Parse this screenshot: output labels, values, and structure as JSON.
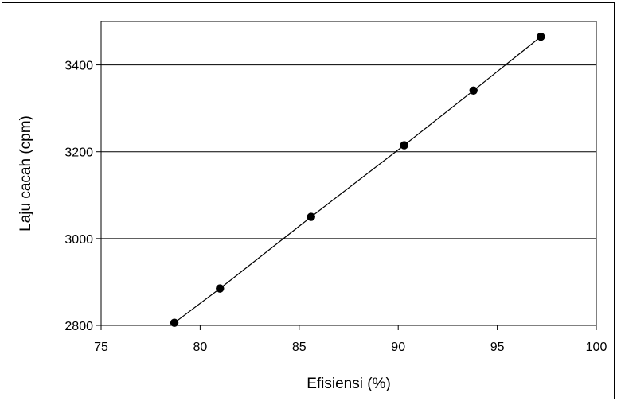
{
  "chart_data": {
    "type": "line",
    "xlabel": "Efisiensi (%)",
    "ylabel": "Laju cacah (cpm)",
    "xlim": [
      75,
      100
    ],
    "ylim": [
      2800,
      3500
    ],
    "xticks": [
      75,
      80,
      85,
      90,
      95,
      100
    ],
    "yticks": [
      2800,
      3000,
      3200,
      3400
    ],
    "grid": "horizontal",
    "series": [
      {
        "x": [
          78.7,
          81.0,
          85.6,
          90.3,
          93.8,
          97.2
        ],
        "y": [
          2806,
          2885,
          3050,
          3215,
          3341,
          3465
        ],
        "marker": "circle",
        "color": "#000000"
      }
    ]
  }
}
